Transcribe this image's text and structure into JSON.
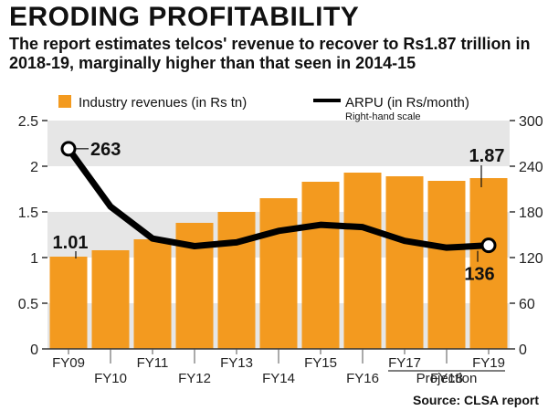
{
  "header": {
    "title": "ERODING PROFITABILITY",
    "subtitle": "The report estimates telcos' revenue to recover to Rs1.87 trillion in 2018-19, marginally higher than that seen in 2014-15"
  },
  "footer": {
    "source": "Source: CLSA report"
  },
  "chart_data": {
    "type": "bar",
    "categories": [
      "FY09",
      "FY10",
      "FY11",
      "FY12",
      "FY13",
      "FY14",
      "FY15",
      "FY16",
      "FY17",
      "FY18",
      "FY19"
    ],
    "series": [
      {
        "name": "Industry revenues (in Rs tn)",
        "type": "bar",
        "axis": "left",
        "values": [
          1.01,
          1.08,
          1.2,
          1.38,
          1.5,
          1.65,
          1.83,
          1.93,
          1.89,
          1.84,
          1.87
        ]
      },
      {
        "name": "ARPU (in Rs/month)",
        "type": "line",
        "axis": "right",
        "values": [
          263,
          187,
          145,
          135,
          140,
          155,
          163,
          160,
          142,
          133,
          136
        ]
      }
    ],
    "legend": {
      "bar_label": "Industry revenues (in Rs tn)",
      "line_label": "ARPU (in Rs/month)",
      "line_note": "Right-hand scale"
    },
    "left_axis": {
      "ylim": [
        0,
        2.5
      ],
      "ticks": [
        "0",
        "0.5",
        "1",
        "1.5",
        "2",
        "2.5"
      ]
    },
    "right_axis": {
      "ylim": [
        0,
        300
      ],
      "ticks": [
        "0",
        "60",
        "120",
        "180",
        "240",
        "300"
      ]
    },
    "annotations": {
      "first_bar": "1.01",
      "last_bar": "1.87",
      "first_line": "263",
      "last_line": "136"
    },
    "projection_label": "Projection",
    "colors": {
      "bar": "#f39a1f",
      "line": "#000000",
      "band": "#e6e6e6",
      "axis": "#333333"
    }
  }
}
